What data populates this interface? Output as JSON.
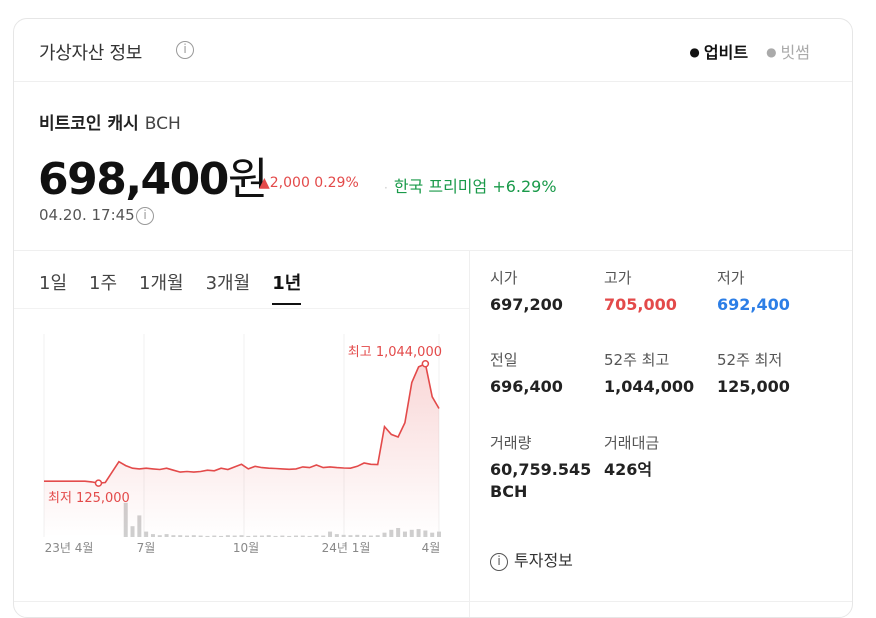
{
  "header": {
    "title": "가상자산 정보",
    "info_glyph": "i",
    "sources": [
      {
        "label": "업비트",
        "active": true
      },
      {
        "label": "빗썸",
        "active": false
      }
    ]
  },
  "asset": {
    "name": "비트코인 캐시",
    "symbol": "BCH",
    "price": "698,400",
    "unit": "원",
    "change": "▲2,000 0.29%",
    "premium_label": "한국 프리미엄",
    "premium_value": "+6.29%",
    "timestamp": "04.20. 17:45"
  },
  "periods": [
    {
      "label": "1일",
      "active": false
    },
    {
      "label": "1주",
      "active": false
    },
    {
      "label": "1개월",
      "active": false
    },
    {
      "label": "3개월",
      "active": false
    },
    {
      "label": "1년",
      "active": true
    }
  ],
  "chart_data": {
    "type": "area",
    "x_ticks": [
      "23년 4월",
      "7월",
      "10월",
      "24년 1월",
      "4월"
    ],
    "high_label": "최고 1,044,000",
    "low_label": "최저 125,000",
    "high": 1044000,
    "low": 125000,
    "ylim": [
      80000,
      1250000
    ],
    "values": [
      140000,
      140000,
      140000,
      140000,
      140000,
      140000,
      140000,
      135000,
      125000,
      130000,
      210000,
      290000,
      260000,
      240000,
      235000,
      240000,
      235000,
      230000,
      240000,
      225000,
      210000,
      215000,
      210000,
      215000,
      225000,
      220000,
      240000,
      230000,
      250000,
      270000,
      235000,
      255000,
      245000,
      240000,
      238000,
      235000,
      232000,
      235000,
      250000,
      245000,
      265000,
      245000,
      250000,
      245000,
      242000,
      240000,
      255000,
      280000,
      270000,
      268000,
      560000,
      500000,
      480000,
      590000,
      900000,
      1020000,
      1044000,
      790000,
      700000
    ],
    "volume": [
      0,
      0,
      0,
      0,
      0,
      0,
      0,
      0,
      0,
      0,
      0,
      0,
      0.95,
      0.3,
      0.6,
      0.15,
      0.08,
      0.05,
      0.08,
      0.05,
      0.05,
      0.04,
      0.05,
      0.04,
      0.03,
      0.04,
      0.03,
      0.05,
      0.04,
      0.05,
      0.03,
      0.04,
      0.04,
      0.05,
      0.03,
      0.04,
      0.03,
      0.04,
      0.04,
      0.03,
      0.05,
      0.04,
      0.15,
      0.08,
      0.06,
      0.05,
      0.06,
      0.05,
      0.04,
      0.05,
      0.12,
      0.2,
      0.25,
      0.15,
      0.2,
      0.22,
      0.18,
      0.12,
      0.15
    ]
  },
  "stats": [
    {
      "label": "시가",
      "value": "697,200",
      "tone": ""
    },
    {
      "label": "고가",
      "value": "705,000",
      "tone": "red"
    },
    {
      "label": "저가",
      "value": "692,400",
      "tone": "blue"
    },
    {
      "label": "전일",
      "value": "696,400",
      "tone": ""
    },
    {
      "label": "52주 최고",
      "value": "1,044,000",
      "tone": ""
    },
    {
      "label": "52주 최저",
      "value": "125,000",
      "tone": ""
    },
    {
      "label": "거래량",
      "value": "60,759.545 BCH",
      "tone": ""
    },
    {
      "label": "거래대금",
      "value": "426억",
      "tone": ""
    }
  ],
  "invest_label": "투자정보",
  "colors": {
    "up": "#e34a4a",
    "down": "#2c7ee6",
    "premium": "#1a9a4a",
    "line": "#e34a4a",
    "volume": "#cfcfcf"
  }
}
